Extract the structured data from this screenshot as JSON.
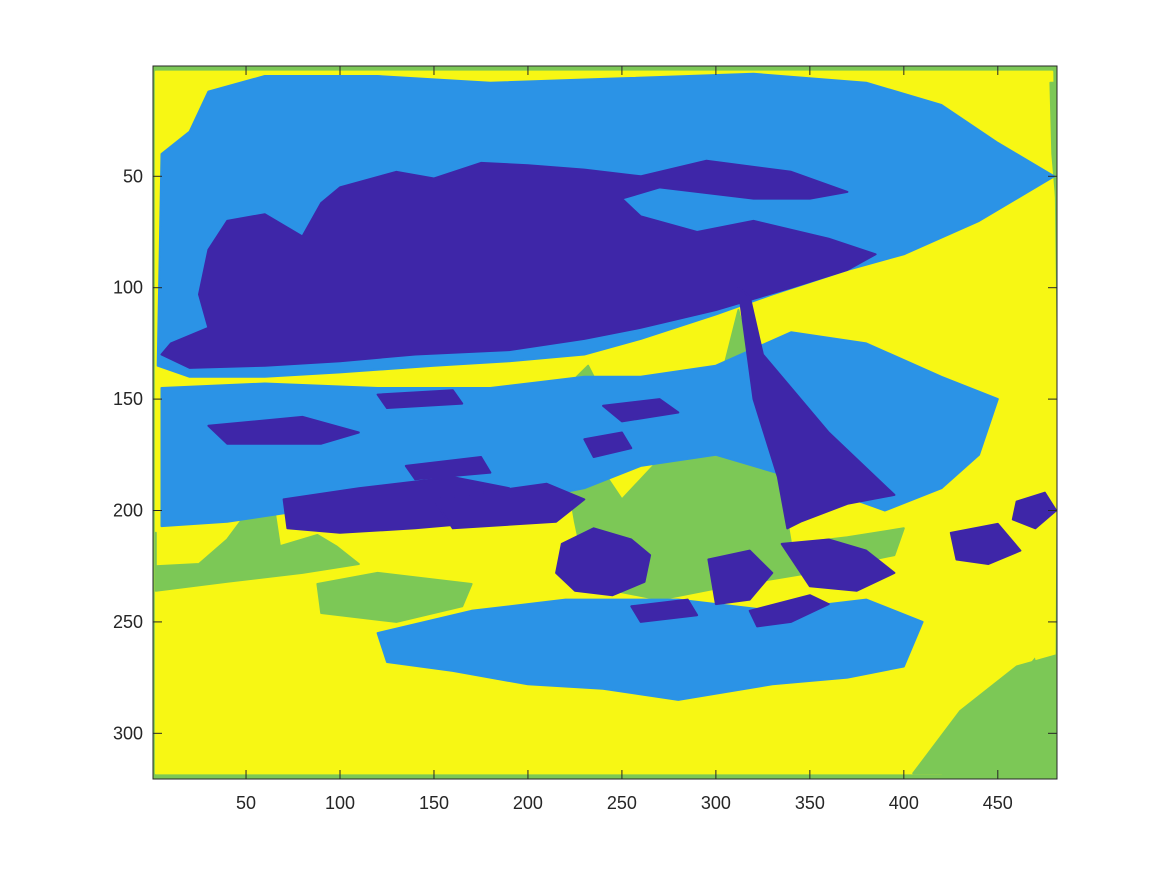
{
  "chart_data": {
    "type": "heatmap",
    "title": "",
    "xlabel": "",
    "ylabel": "",
    "xlim": [
      0.5,
      481.5
    ],
    "ylim": [
      320.5,
      0.5
    ],
    "y_direction": "reverse",
    "x_ticks": [
      50,
      100,
      150,
      200,
      250,
      300,
      350,
      400,
      450
    ],
    "y_ticks": [
      50,
      100,
      150,
      200,
      250,
      300
    ],
    "grid": false,
    "legend": "none",
    "colormap_classes": [
      {
        "level": 1,
        "color": "#3e26a8"
      },
      {
        "level": 2,
        "color": "#2b93e6"
      },
      {
        "level": 3,
        "color": "#7cc856"
      },
      {
        "level": 4,
        "color": "#f7f714"
      }
    ],
    "regions": [
      {
        "level": 3,
        "points": [
          [
            1,
            1
          ],
          [
            481,
            1
          ],
          [
            481,
            320
          ],
          [
            1,
            320
          ]
        ]
      },
      {
        "level": 4,
        "points": [
          [
            2,
            3
          ],
          [
            479,
            3
          ],
          [
            481,
            140
          ],
          [
            480,
            300
          ],
          [
            470,
            265
          ],
          [
            440,
            295
          ],
          [
            420,
            318
          ],
          [
            2,
            318
          ]
        ]
      },
      {
        "level": 3,
        "points": [
          [
            478,
            8
          ],
          [
            481,
            8
          ],
          [
            481,
            60
          ],
          [
            479,
            40
          ]
        ]
      },
      {
        "level": 3,
        "points": [
          [
            2,
            210
          ],
          [
            2,
            225
          ],
          [
            25,
            224
          ],
          [
            40,
            213
          ],
          [
            55,
            196
          ],
          [
            65,
            199
          ],
          [
            68,
            216
          ],
          [
            88,
            211
          ],
          [
            98,
            216
          ],
          [
            110,
            224
          ],
          [
            80,
            228
          ],
          [
            40,
            232
          ],
          [
            2,
            236
          ]
        ]
      },
      {
        "level": 3,
        "points": [
          [
            88,
            233
          ],
          [
            120,
            228
          ],
          [
            170,
            233
          ],
          [
            165,
            243
          ],
          [
            130,
            250
          ],
          [
            90,
            246
          ]
        ]
      },
      {
        "level": 3,
        "points": [
          [
            218,
            171
          ],
          [
            220,
            155
          ],
          [
            226,
            140
          ],
          [
            232,
            135
          ],
          [
            238,
            145
          ],
          [
            242,
            160
          ],
          [
            238,
            180
          ],
          [
            250,
            195
          ],
          [
            300,
            150
          ],
          [
            312,
            110
          ],
          [
            335,
            190
          ],
          [
            340,
            215
          ],
          [
            370,
            212
          ],
          [
            400,
            208
          ],
          [
            395,
            220
          ],
          [
            350,
            228
          ],
          [
            300,
            235
          ],
          [
            270,
            240
          ],
          [
            240,
            235
          ],
          [
            230,
            225
          ],
          [
            225,
            205
          ]
        ]
      },
      {
        "level": 3,
        "points": [
          [
            405,
            318
          ],
          [
            430,
            290
          ],
          [
            460,
            270
          ],
          [
            481,
            265
          ],
          [
            481,
            318
          ]
        ]
      },
      {
        "level": 2,
        "points": [
          [
            5,
            40
          ],
          [
            20,
            30
          ],
          [
            30,
            12
          ],
          [
            60,
            5
          ],
          [
            120,
            5
          ],
          [
            180,
            8
          ],
          [
            250,
            6
          ],
          [
            320,
            4
          ],
          [
            380,
            8
          ],
          [
            420,
            18
          ],
          [
            450,
            35
          ],
          [
            480,
            50
          ],
          [
            440,
            70
          ],
          [
            400,
            85
          ],
          [
            370,
            92
          ],
          [
            330,
            103
          ],
          [
            300,
            112
          ],
          [
            260,
            123
          ],
          [
            230,
            130
          ],
          [
            190,
            133
          ],
          [
            150,
            135
          ],
          [
            100,
            138
          ],
          [
            60,
            140
          ],
          [
            20,
            140
          ],
          [
            3,
            135
          ]
        ]
      },
      {
        "level": 1,
        "points": [
          [
            30,
            83
          ],
          [
            40,
            70
          ],
          [
            60,
            67
          ],
          [
            80,
            77
          ],
          [
            90,
            62
          ],
          [
            100,
            55
          ],
          [
            130,
            48
          ],
          [
            150,
            51
          ],
          [
            175,
            44
          ],
          [
            200,
            45
          ],
          [
            230,
            47
          ],
          [
            260,
            50
          ],
          [
            295,
            43
          ],
          [
            340,
            48
          ],
          [
            370,
            57
          ],
          [
            350,
            60
          ],
          [
            320,
            60
          ],
          [
            270,
            55
          ],
          [
            250,
            60
          ],
          [
            260,
            68
          ],
          [
            290,
            75
          ],
          [
            320,
            70
          ],
          [
            360,
            78
          ],
          [
            385,
            85
          ],
          [
            370,
            92
          ],
          [
            340,
            100
          ],
          [
            300,
            110
          ],
          [
            260,
            118
          ],
          [
            230,
            123
          ],
          [
            190,
            128
          ],
          [
            140,
            130
          ],
          [
            100,
            133
          ],
          [
            60,
            135
          ],
          [
            20,
            136
          ],
          [
            5,
            130
          ],
          [
            10,
            125
          ],
          [
            30,
            118
          ],
          [
            25,
            103
          ]
        ]
      },
      {
        "level": 2,
        "points": [
          [
            5,
            145
          ],
          [
            60,
            143
          ],
          [
            120,
            145
          ],
          [
            180,
            145
          ],
          [
            230,
            140
          ],
          [
            260,
            140
          ],
          [
            300,
            135
          ],
          [
            340,
            120
          ],
          [
            380,
            125
          ],
          [
            420,
            140
          ],
          [
            450,
            150
          ],
          [
            440,
            175
          ],
          [
            420,
            190
          ],
          [
            390,
            200
          ],
          [
            340,
            185
          ],
          [
            300,
            175
          ],
          [
            260,
            180
          ],
          [
            230,
            190
          ],
          [
            200,
            195
          ],
          [
            160,
            200
          ],
          [
            120,
            205
          ],
          [
            80,
            200
          ],
          [
            40,
            205
          ],
          [
            5,
            207
          ]
        ]
      },
      {
        "level": 2,
        "points": [
          [
            120,
            255
          ],
          [
            170,
            245
          ],
          [
            220,
            240
          ],
          [
            280,
            240
          ],
          [
            330,
            245
          ],
          [
            380,
            240
          ],
          [
            410,
            250
          ],
          [
            400,
            270
          ],
          [
            370,
            275
          ],
          [
            330,
            278
          ],
          [
            280,
            285
          ],
          [
            240,
            280
          ],
          [
            200,
            278
          ],
          [
            160,
            272
          ],
          [
            125,
            268
          ]
        ]
      },
      {
        "level": 1,
        "points": [
          [
            312,
            100
          ],
          [
            318,
            104
          ],
          [
            325,
            130
          ],
          [
            360,
            165
          ],
          [
            395,
            193
          ],
          [
            370,
            197
          ],
          [
            345,
            205
          ],
          [
            338,
            208
          ],
          [
            333,
            185
          ],
          [
            320,
            150
          ]
        ]
      },
      {
        "level": 1,
        "points": [
          [
            218,
            215
          ],
          [
            235,
            208
          ],
          [
            255,
            213
          ],
          [
            265,
            220
          ],
          [
            262,
            232
          ],
          [
            245,
            238
          ],
          [
            225,
            236
          ],
          [
            215,
            228
          ]
        ]
      },
      {
        "level": 1,
        "points": [
          [
            335,
            215
          ],
          [
            360,
            213
          ],
          [
            380,
            218
          ],
          [
            395,
            228
          ],
          [
            375,
            236
          ],
          [
            350,
            234
          ]
        ]
      },
      {
        "level": 1,
        "points": [
          [
            296,
            222
          ],
          [
            318,
            218
          ],
          [
            330,
            228
          ],
          [
            318,
            240
          ],
          [
            300,
            242
          ]
        ]
      },
      {
        "level": 1,
        "points": [
          [
            318,
            245
          ],
          [
            350,
            238
          ],
          [
            360,
            242
          ],
          [
            340,
            250
          ],
          [
            322,
            252
          ]
        ]
      },
      {
        "level": 1,
        "points": [
          [
            425,
            210
          ],
          [
            450,
            206
          ],
          [
            462,
            218
          ],
          [
            445,
            224
          ],
          [
            428,
            222
          ]
        ]
      },
      {
        "level": 1,
        "points": [
          [
            460,
            196
          ],
          [
            475,
            192
          ],
          [
            481,
            200
          ],
          [
            470,
            208
          ],
          [
            458,
            204
          ]
        ]
      },
      {
        "level": 1,
        "points": [
          [
            70,
            195
          ],
          [
            110,
            190
          ],
          [
            160,
            185
          ],
          [
            190,
            190
          ],
          [
            180,
            205
          ],
          [
            140,
            208
          ],
          [
            100,
            210
          ],
          [
            72,
            208
          ]
        ]
      },
      {
        "level": 1,
        "points": [
          [
            30,
            162
          ],
          [
            80,
            158
          ],
          [
            110,
            165
          ],
          [
            90,
            170
          ],
          [
            40,
            170
          ]
        ]
      },
      {
        "level": 1,
        "points": [
          [
            150,
            195
          ],
          [
            210,
            188
          ],
          [
            230,
            195
          ],
          [
            215,
            205
          ],
          [
            160,
            208
          ]
        ]
      },
      {
        "level": 1,
        "points": [
          [
            230,
            168
          ],
          [
            250,
            165
          ],
          [
            255,
            172
          ],
          [
            235,
            176
          ]
        ]
      },
      {
        "level": 1,
        "points": [
          [
            240,
            153
          ],
          [
            270,
            150
          ],
          [
            280,
            156
          ],
          [
            250,
            160
          ]
        ]
      },
      {
        "level": 1,
        "points": [
          [
            120,
            148
          ],
          [
            160,
            146
          ],
          [
            165,
            152
          ],
          [
            125,
            154
          ]
        ]
      },
      {
        "level": 1,
        "points": [
          [
            255,
            243
          ],
          [
            285,
            240
          ],
          [
            290,
            247
          ],
          [
            260,
            250
          ]
        ]
      },
      {
        "level": 1,
        "points": [
          [
            135,
            180
          ],
          [
            175,
            176
          ],
          [
            180,
            183
          ],
          [
            140,
            186
          ]
        ]
      }
    ]
  }
}
